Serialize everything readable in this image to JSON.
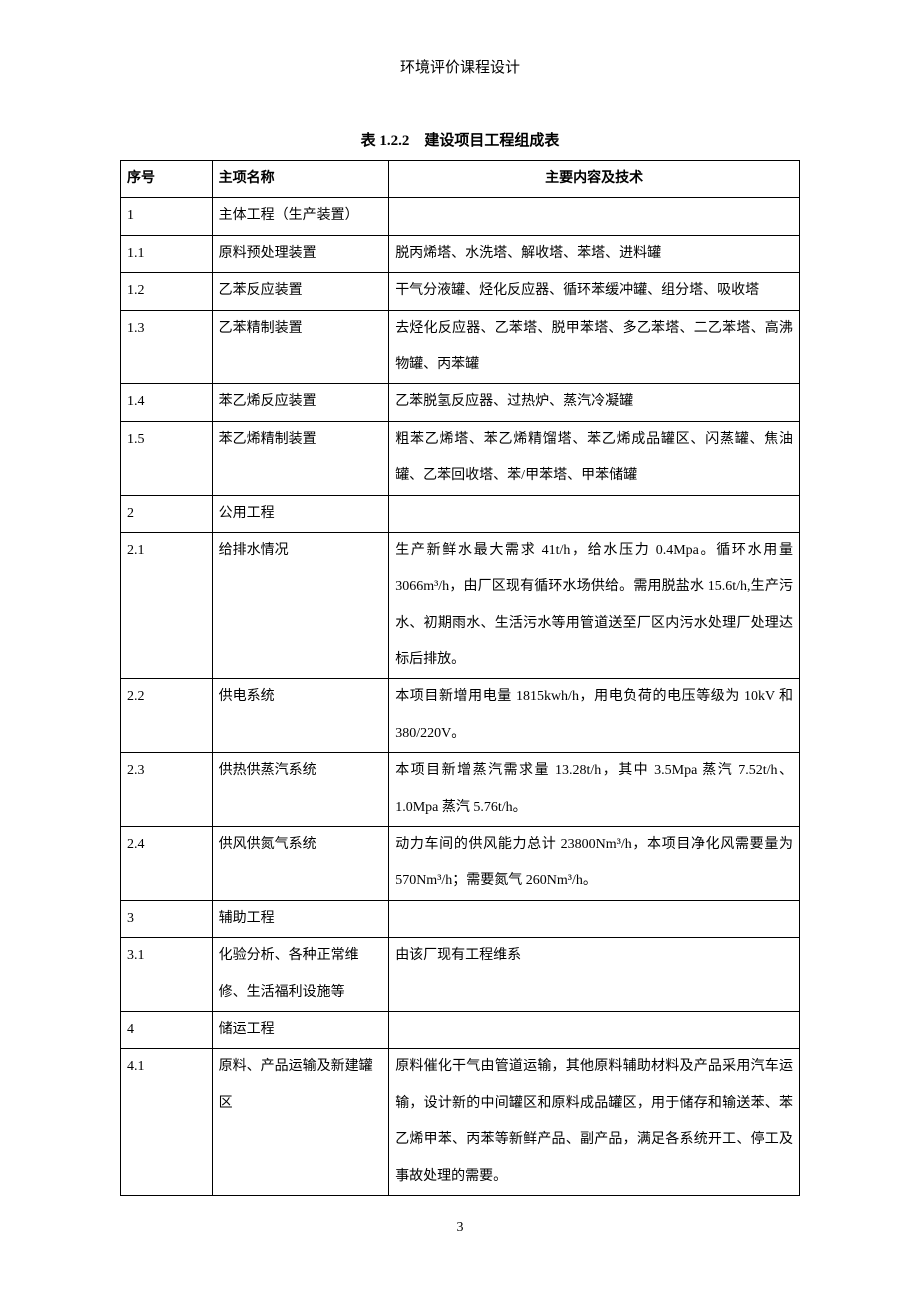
{
  "header": {
    "title": "环境评价课程设计"
  },
  "table": {
    "caption": "表 1.2.2　建设项目工程组成表",
    "columns": {
      "seq": "序号",
      "name": "主项名称",
      "content": "主要内容及技术"
    },
    "rows": [
      {
        "seq": "1",
        "name": "主体工程（生产装置）",
        "content": ""
      },
      {
        "seq": "1.1",
        "name": "原料预处理装置",
        "content": "脱丙烯塔、水洗塔、解收塔、苯塔、进料罐"
      },
      {
        "seq": "1.2",
        "name": "乙苯反应装置",
        "content": "干气分液罐、烃化反应器、循环苯缓冲罐、组分塔、吸收塔"
      },
      {
        "seq": "1.3",
        "name": "乙苯精制装置",
        "content": "去烃化反应器、乙苯塔、脱甲苯塔、多乙苯塔、二乙苯塔、高沸物罐、丙苯罐"
      },
      {
        "seq": "1.4",
        "name": "苯乙烯反应装置",
        "content": "乙苯脱氢反应器、过热炉、蒸汽冷凝罐"
      },
      {
        "seq": "1.5",
        "name": "苯乙烯精制装置",
        "content": "粗苯乙烯塔、苯乙烯精馏塔、苯乙烯成品罐区、闪蒸罐、焦油罐、乙苯回收塔、苯/甲苯塔、甲苯储罐"
      },
      {
        "seq": "2",
        "name": "公用工程",
        "content": ""
      },
      {
        "seq": "2.1",
        "name": "给排水情况",
        "content": "生产新鲜水最大需求 41t/h，给水压力 0.4Mpa。循环水用量3066m³/h，由厂区现有循环水场供给。需用脱盐水 15.6t/h,生产污水、初期雨水、生活污水等用管道送至厂区内污水处理厂处理达标后排放。"
      },
      {
        "seq": "2.2",
        "name": "供电系统",
        "content": "本项目新增用电量 1815kwh/h，用电负荷的电压等级为 10kV 和380/220V。"
      },
      {
        "seq": "2.3",
        "name": "供热供蒸汽系统",
        "content": "本项目新增蒸汽需求量 13.28t/h，其中 3.5Mpa 蒸汽 7.52t/h、1.0Mpa 蒸汽 5.76t/h。"
      },
      {
        "seq": "2.4",
        "name": "供风供氮气系统",
        "content": "动力车间的供风能力总计 23800Nm³/h，本项目净化风需要量为570Nm³/h；需要氮气 260Nm³/h。"
      },
      {
        "seq": "3",
        "name": "辅助工程",
        "content": ""
      },
      {
        "seq": "3.1",
        "name": "化验分析、各种正常维修、生活福利设施等",
        "content": "由该厂现有工程维系"
      },
      {
        "seq": "4",
        "name": "储运工程",
        "content": ""
      },
      {
        "seq": "4.1",
        "name": "原料、产品运输及新建罐区",
        "content": "原料催化干气由管道运输，其他原料辅助材料及产品采用汽车运输，设计新的中间罐区和原料成品罐区，用于储存和输送苯、苯乙烯甲苯、丙苯等新鲜产品、副产品，满足各系统开工、停工及事故处理的需要。"
      }
    ]
  },
  "footer": {
    "page_number": "3"
  }
}
